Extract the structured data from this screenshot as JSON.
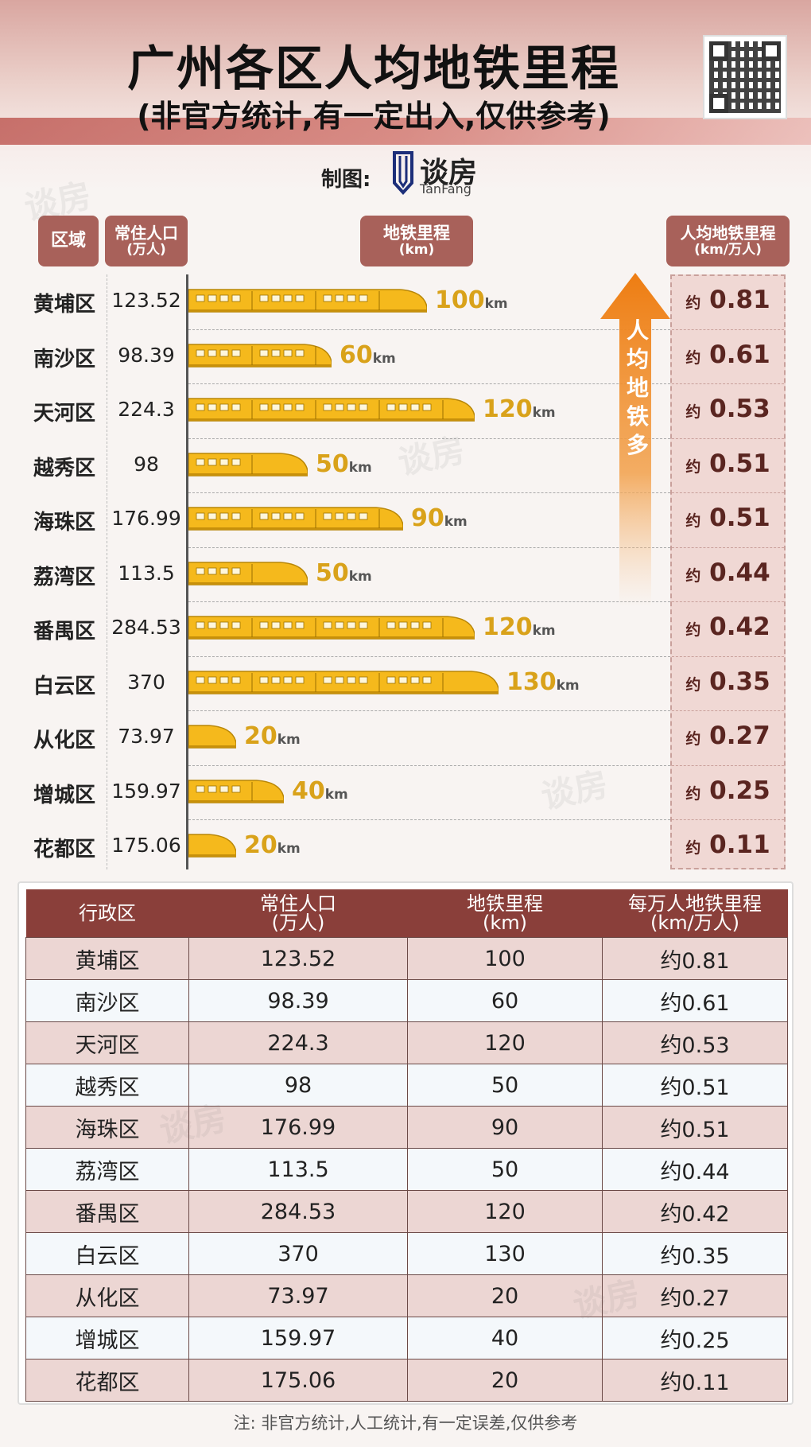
{
  "header": {
    "title": "广州各区人均地铁里程",
    "subtitle": "(非官方统计,有一定出入,仅供参考)",
    "credit_label": "制图:",
    "logo_name": "谈房",
    "logo_sub": "TanFang"
  },
  "columns": {
    "district": "区域",
    "population_l1": "常住人口",
    "population_l2": "(万人)",
    "mileage_l1": "地铁里程",
    "mileage_l2": "(km)",
    "per_capita_l1": "人均地铁里程",
    "per_capita_l2": "(km/万人)"
  },
  "arrow_label": "人均地铁多",
  "km_unit": "km",
  "approx_prefix": "约",
  "chart_data": {
    "type": "bar",
    "orientation": "horizontal",
    "title": "广州各区人均地铁里程",
    "categories": [
      "黄埔区",
      "南沙区",
      "天河区",
      "越秀区",
      "海珠区",
      "荔湾区",
      "番禺区",
      "白云区",
      "从化区",
      "增城区",
      "花都区"
    ],
    "population": [
      "123.52",
      "98.39",
      "224.3",
      "98",
      "176.99",
      "113.5",
      "284.53",
      "370",
      "73.97",
      "159.97",
      "175.06"
    ],
    "values": [
      100,
      60,
      120,
      50,
      90,
      50,
      120,
      130,
      20,
      40,
      20
    ],
    "per_capita": [
      "0.81",
      "0.61",
      "0.53",
      "0.51",
      "0.51",
      "0.44",
      "0.42",
      "0.35",
      "0.27",
      "0.25",
      "0.11"
    ],
    "bar_color": "#f5b91c",
    "label_color": "#d9a21a"
  },
  "table": {
    "headers": [
      {
        "l1": "行政区",
        "l2": ""
      },
      {
        "l1": "常住人口",
        "l2": "(万人)"
      },
      {
        "l1": "地铁里程",
        "l2": "(km)"
      },
      {
        "l1": "每万人地铁里程",
        "l2": "(km/万人)"
      }
    ],
    "rows": [
      [
        "黄埔区",
        "123.52",
        "100",
        "约0.81"
      ],
      [
        "南沙区",
        "98.39",
        "60",
        "约0.61"
      ],
      [
        "天河区",
        "224.3",
        "120",
        "约0.53"
      ],
      [
        "越秀区",
        "98",
        "50",
        "约0.51"
      ],
      [
        "海珠区",
        "176.99",
        "90",
        "约0.51"
      ],
      [
        "荔湾区",
        "113.5",
        "50",
        "约0.44"
      ],
      [
        "番禺区",
        "284.53",
        "120",
        "约0.42"
      ],
      [
        "白云区",
        "370",
        "130",
        "约0.35"
      ],
      [
        "从化区",
        "73.97",
        "20",
        "约0.27"
      ],
      [
        "增城区",
        "159.97",
        "40",
        "约0.25"
      ],
      [
        "花都区",
        "175.06",
        "20",
        "约0.11"
      ]
    ]
  },
  "footnote": "注:  非官方统计,人工统计,有一定误差,仅供参考"
}
